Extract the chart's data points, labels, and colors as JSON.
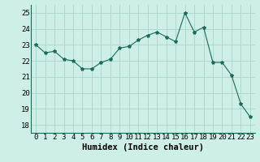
{
  "x": [
    0,
    1,
    2,
    3,
    4,
    5,
    6,
    7,
    8,
    9,
    10,
    11,
    12,
    13,
    14,
    15,
    16,
    17,
    18,
    19,
    20,
    21,
    22,
    23
  ],
  "y": [
    23.0,
    22.5,
    22.6,
    22.1,
    22.0,
    21.5,
    21.5,
    21.9,
    22.1,
    22.8,
    22.9,
    23.3,
    23.6,
    23.8,
    23.5,
    23.2,
    25.0,
    23.8,
    24.1,
    21.9,
    21.9,
    21.1,
    19.3,
    18.5
  ],
  "line_color": "#1a6b5a",
  "marker": "*",
  "marker_size": 3,
  "bg_color": "#ceeee8",
  "grid_color": "#aad4cc",
  "xlabel": "Humidex (Indice chaleur)",
  "xlabel_fontsize": 7.5,
  "tick_fontsize": 6.5,
  "ylim": [
    17.5,
    25.5
  ],
  "yticks": [
    18,
    19,
    20,
    21,
    22,
    23,
    24,
    25
  ],
  "xticks": [
    0,
    1,
    2,
    3,
    4,
    5,
    6,
    7,
    8,
    9,
    10,
    11,
    12,
    13,
    14,
    15,
    16,
    17,
    18,
    19,
    20,
    21,
    22,
    23
  ]
}
